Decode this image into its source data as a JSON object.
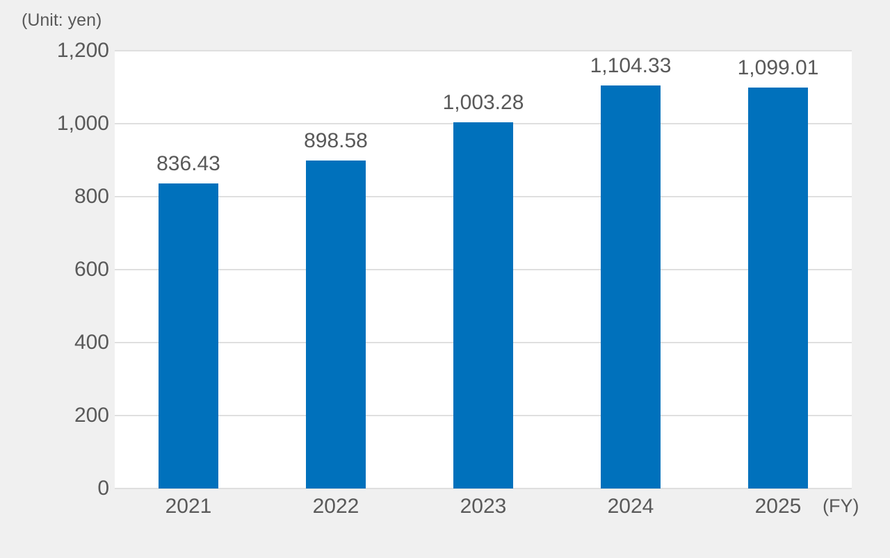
{
  "chart_data": {
    "type": "bar",
    "title": "",
    "unit_label": "(Unit: yen)",
    "xlabel": "(FY)",
    "ylabel": "",
    "categories": [
      "2021",
      "2022",
      "2023",
      "2024",
      "2025"
    ],
    "values": [
      836.43,
      898.58,
      1003.28,
      1104.33,
      1099.01
    ],
    "value_labels": [
      "836.43",
      "898.58",
      "1,003.28",
      "1,104.33",
      "1,099.01"
    ],
    "ylim": [
      0,
      1200
    ],
    "ytick_step": 200,
    "ytick_labels": [
      "0",
      "200",
      "400",
      "600",
      "800",
      "1,000",
      "1,200"
    ],
    "grid": true,
    "legend": "none",
    "colors": {
      "bar": "#0071bc",
      "text": "#595959",
      "gridline": "#dfdfdf",
      "plot_background": "#ffffff",
      "page_background": "#f0f0f0"
    }
  }
}
